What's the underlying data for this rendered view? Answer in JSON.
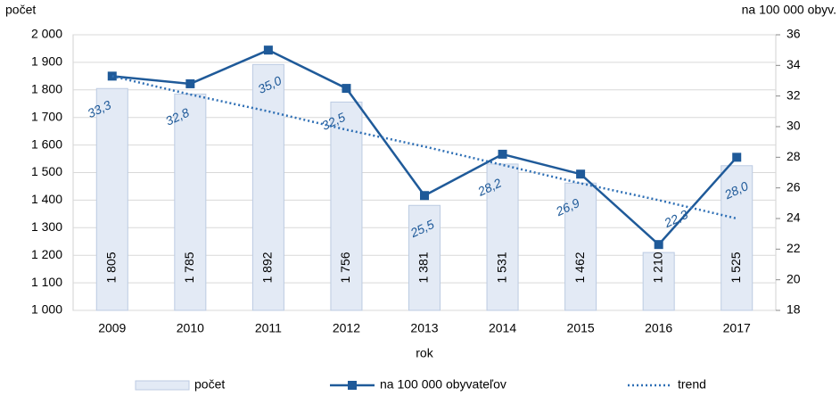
{
  "chart_data": {
    "type": "bar_line",
    "y_axis_label": "počet",
    "y2_axis_label": "na 100 000 obyv.",
    "x_axis_label": "rok",
    "categories": [
      "2009",
      "2010",
      "2011",
      "2012",
      "2013",
      "2014",
      "2015",
      "2016",
      "2017"
    ],
    "series": [
      {
        "name": "počet",
        "type": "bar",
        "color": "#e3eaf5",
        "values": [
          1805,
          1785,
          1892,
          1756,
          1381,
          1531,
          1462,
          1210,
          1525
        ],
        "value_labels": [
          "1 805",
          "1 785",
          "1 892",
          "1 756",
          "1 381",
          "1 531",
          "1 462",
          "1 210",
          "1 525"
        ]
      },
      {
        "name": "na 100 000 obyvateľov",
        "type": "line",
        "axis": "y2",
        "color": "#1f5a99",
        "values": [
          33.3,
          32.8,
          35.0,
          32.5,
          25.5,
          28.2,
          26.9,
          22.3,
          28.0
        ],
        "value_labels": [
          "33,3",
          "32,8",
          "35,0",
          "32,5",
          "25,5",
          "28,2",
          "26,9",
          "22,3",
          "28,0"
        ]
      },
      {
        "name": "trend",
        "type": "trend",
        "axis": "y2",
        "color": "#2e6fb5",
        "values": [
          33.3,
          32.1,
          31.0,
          29.8,
          28.7,
          27.5,
          26.3,
          25.2,
          24.0
        ]
      }
    ],
    "ylim": [
      1000,
      2000
    ],
    "yticks": [
      {
        "value": 1000,
        "label": "1 000"
      },
      {
        "value": 1100,
        "label": "1 100"
      },
      {
        "value": 1200,
        "label": "1 200"
      },
      {
        "value": 1300,
        "label": "1 300"
      },
      {
        "value": 1400,
        "label": "1 400"
      },
      {
        "value": 1500,
        "label": "1 500"
      },
      {
        "value": 1600,
        "label": "1 600"
      },
      {
        "value": 1700,
        "label": "1 700"
      },
      {
        "value": 1800,
        "label": "1 800"
      },
      {
        "value": 1900,
        "label": "1 900"
      },
      {
        "value": 2000,
        "label": "2 000"
      }
    ],
    "y2lim": [
      18,
      36
    ],
    "y2ticks": [
      18,
      20,
      22,
      24,
      26,
      28,
      30,
      32,
      34,
      36
    ],
    "grid": true,
    "legend": "bottom"
  }
}
